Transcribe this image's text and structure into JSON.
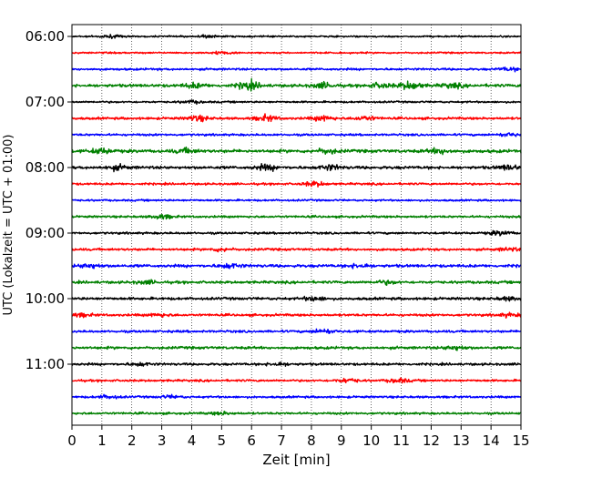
{
  "chart_data": {
    "type": "line",
    "subtype": "helicorder",
    "xlabel": "Zeit  [min]",
    "ylabel": "UTC (Lokalzeit = UTC + 01:00)",
    "xlim": [
      0,
      15
    ],
    "xticks": [
      0,
      1,
      2,
      3,
      4,
      5,
      6,
      7,
      8,
      9,
      10,
      11,
      12,
      13,
      14,
      15
    ],
    "xtick_labels": [
      "0",
      "1",
      "2",
      "3",
      "4",
      "5",
      "6",
      "7",
      "8",
      "9",
      "10",
      "11",
      "12",
      "13",
      "14",
      "15"
    ],
    "ytick_labels": [
      "06:00",
      "07:00",
      "08:00",
      "09:00",
      "10:00",
      "11:00"
    ],
    "ytick_trace_index": [
      0,
      4,
      8,
      12,
      16,
      20
    ],
    "trace_interval_min": 15,
    "trace_count": 24,
    "vertical_grid": true,
    "grid_style": "dotted",
    "colors": [
      "#000000",
      "#ff0000",
      "#0000ff",
      "#008000"
    ],
    "traces": [
      {
        "start": "06:00",
        "color": "#000000",
        "amplitude": 0.35,
        "bursts": [
          [
            1.3,
            0.5
          ],
          [
            4.5,
            0.4
          ]
        ]
      },
      {
        "start": "06:15",
        "color": "#ff0000",
        "amplitude": 0.35,
        "bursts": [
          [
            5.0,
            0.5
          ]
        ]
      },
      {
        "start": "06:30",
        "color": "#0000ff",
        "amplitude": 0.45,
        "bursts": [
          [
            14.6,
            0.6
          ]
        ]
      },
      {
        "start": "06:45",
        "color": "#008000",
        "amplitude": 0.6,
        "bursts": [
          [
            4.1,
            0.9
          ],
          [
            5.9,
            1.6
          ],
          [
            8.4,
            1.0
          ],
          [
            10.3,
            0.9
          ],
          [
            11.3,
            1.5
          ],
          [
            12.7,
            0.8
          ]
        ]
      },
      {
        "start": "07:00",
        "color": "#000000",
        "amplitude": 0.4,
        "bursts": [
          [
            4.0,
            0.5
          ]
        ]
      },
      {
        "start": "07:15",
        "color": "#ff0000",
        "amplitude": 0.5,
        "bursts": [
          [
            4.2,
            1.0
          ],
          [
            6.5,
            1.1
          ],
          [
            8.4,
            1.0
          ],
          [
            9.8,
            0.8
          ]
        ]
      },
      {
        "start": "07:30",
        "color": "#0000ff",
        "amplitude": 0.45,
        "bursts": [
          [
            14.6,
            0.6
          ]
        ]
      },
      {
        "start": "07:45",
        "color": "#008000",
        "amplitude": 0.65,
        "bursts": [
          [
            1.0,
            0.9
          ],
          [
            3.8,
            0.8
          ],
          [
            8.5,
            0.9
          ],
          [
            12.3,
            0.9
          ]
        ]
      },
      {
        "start": "08:00",
        "color": "#000000",
        "amplitude": 0.6,
        "bursts": [
          [
            1.5,
            0.8
          ],
          [
            6.5,
            1.0
          ],
          [
            8.6,
            1.0
          ],
          [
            14.6,
            0.9
          ]
        ]
      },
      {
        "start": "08:15",
        "color": "#ff0000",
        "amplitude": 0.45,
        "bursts": [
          [
            8.1,
            0.9
          ]
        ]
      },
      {
        "start": "08:30",
        "color": "#0000ff",
        "amplitude": 0.4,
        "bursts": []
      },
      {
        "start": "08:45",
        "color": "#008000",
        "amplitude": 0.45,
        "bursts": [
          [
            3.0,
            0.8
          ]
        ]
      },
      {
        "start": "09:00",
        "color": "#000000",
        "amplitude": 0.45,
        "bursts": [
          [
            14.3,
            0.8
          ]
        ]
      },
      {
        "start": "09:15",
        "color": "#ff0000",
        "amplitude": 0.5,
        "bursts": [
          [
            5.0,
            0.6
          ],
          [
            14.6,
            0.6
          ]
        ]
      },
      {
        "start": "09:30",
        "color": "#0000ff",
        "amplitude": 0.6,
        "bursts": [
          [
            0.6,
            0.8
          ],
          [
            5.3,
            0.9
          ],
          [
            9.6,
            0.7
          ]
        ]
      },
      {
        "start": "09:45",
        "color": "#008000",
        "amplitude": 0.55,
        "bursts": [
          [
            2.5,
            0.6
          ],
          [
            10.5,
            0.6
          ]
        ]
      },
      {
        "start": "10:00",
        "color": "#000000",
        "amplitude": 0.55,
        "bursts": [
          [
            8.1,
            0.8
          ],
          [
            14.6,
            0.6
          ]
        ]
      },
      {
        "start": "10:15",
        "color": "#ff0000",
        "amplitude": 0.5,
        "bursts": [
          [
            0.3,
            0.6
          ],
          [
            2.9,
            0.6
          ],
          [
            14.6,
            0.6
          ]
        ]
      },
      {
        "start": "10:30",
        "color": "#0000ff",
        "amplitude": 0.5,
        "bursts": [
          [
            8.4,
            0.8
          ]
        ]
      },
      {
        "start": "10:45",
        "color": "#008000",
        "amplitude": 0.55,
        "bursts": [
          [
            12.8,
            0.8
          ]
        ]
      },
      {
        "start": "11:00",
        "color": "#000000",
        "amplitude": 0.5,
        "bursts": [
          [
            2.3,
            0.6
          ],
          [
            6.9,
            0.6
          ]
        ]
      },
      {
        "start": "11:15",
        "color": "#ff0000",
        "amplitude": 0.45,
        "bursts": [
          [
            9.2,
            0.8
          ],
          [
            10.9,
            0.8
          ]
        ]
      },
      {
        "start": "11:30",
        "color": "#0000ff",
        "amplitude": 0.45,
        "bursts": [
          [
            1.2,
            0.6
          ],
          [
            3.3,
            0.5
          ]
        ]
      },
      {
        "start": "11:45",
        "color": "#008000",
        "amplitude": 0.45,
        "bursts": [
          [
            5.0,
            0.5
          ]
        ]
      }
    ]
  }
}
